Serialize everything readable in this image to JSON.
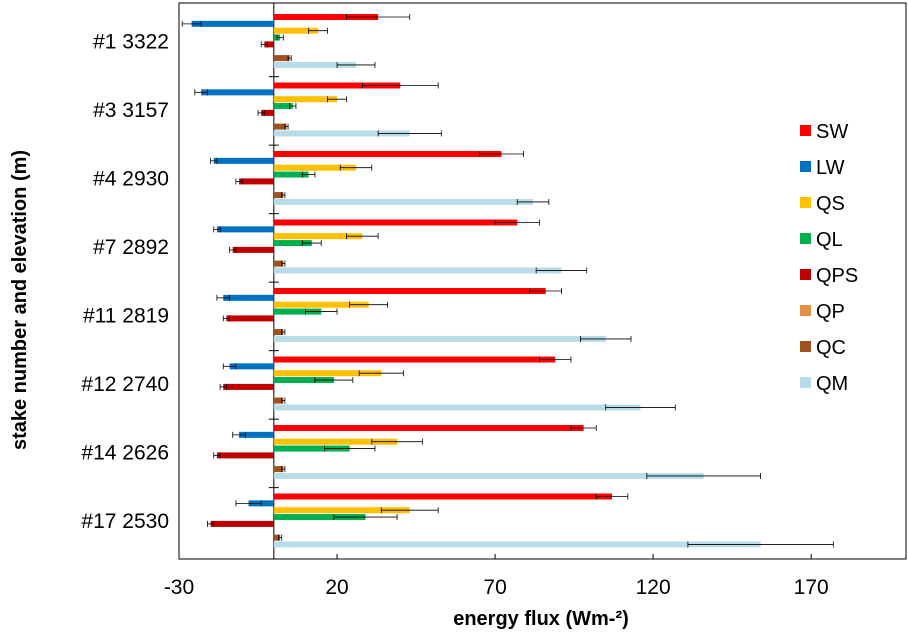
{
  "chart_data": {
    "type": "bar",
    "orientation": "horizontal",
    "xlabel": "energy flux (Wm-²)",
    "ylabel": "stake number and elevation (m)",
    "xlim": [
      -30,
      200
    ],
    "xticks": [
      "-30",
      "20",
      "70",
      "120",
      "170"
    ],
    "grid": false,
    "legend_position": "right",
    "categories": [
      "#1 3322",
      "#3 3157",
      "#4 2930",
      "#7 2892",
      "#11 2819",
      "#12 2740",
      "#14 2626",
      "#17 2530"
    ],
    "series": [
      {
        "name": "SW",
        "color": "#ff0000",
        "values": [
          33,
          40,
          72,
          77,
          86,
          89,
          98,
          107
        ],
        "errors": [
          10,
          12,
          7,
          7,
          5,
          5,
          4,
          5
        ]
      },
      {
        "name": "LW",
        "color": "#0070c0",
        "values": [
          -26,
          -23,
          -19,
          -18,
          -16,
          -14,
          -11,
          -8
        ],
        "errors": [
          3,
          2,
          1,
          1,
          2,
          2,
          2,
          4
        ]
      },
      {
        "name": "QS",
        "color": "#ffc000",
        "values": [
          14,
          20,
          26,
          28,
          30,
          34,
          39,
          43
        ],
        "errors": [
          3,
          3,
          5,
          5,
          6,
          7,
          8,
          9
        ]
      },
      {
        "name": "QL",
        "color": "#00b050",
        "values": [
          2,
          6,
          11,
          12,
          15,
          19,
          24,
          29
        ],
        "errors": [
          1,
          1,
          2,
          3,
          5,
          6,
          8,
          10
        ]
      },
      {
        "name": "QPS",
        "color": "#c00000",
        "values": [
          -3,
          -4,
          -11,
          -13,
          -15,
          -16,
          -18,
          -20
        ],
        "errors": [
          1,
          1,
          1,
          1,
          1,
          1,
          1,
          1
        ]
      },
      {
        "name": "QP",
        "color": "#e59047",
        "values": [
          0,
          0,
          0,
          0,
          0,
          0,
          0,
          0
        ],
        "errors": [
          0,
          0,
          0,
          0,
          0,
          0,
          0,
          0
        ]
      },
      {
        "name": "QC",
        "color": "#a0521e",
        "values": [
          5,
          4,
          3,
          3,
          3,
          3,
          3,
          2
        ],
        "errors": [
          0.5,
          0.5,
          0.5,
          0.5,
          0.5,
          0.5,
          0.5,
          0.5
        ]
      },
      {
        "name": "QM",
        "color": "#b8dde8",
        "values": [
          26,
          43,
          82,
          91,
          105,
          116,
          136,
          154
        ],
        "errors": [
          6,
          10,
          5,
          8,
          8,
          11,
          18,
          23
        ]
      }
    ]
  }
}
